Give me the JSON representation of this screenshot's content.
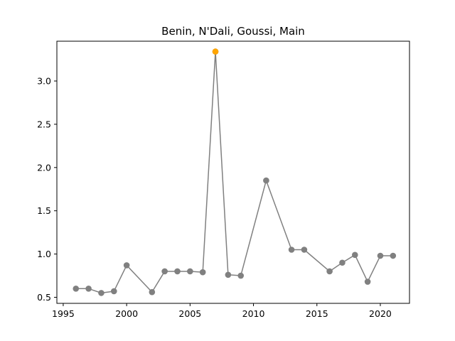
{
  "chart_data": {
    "type": "line",
    "title": "Benin, N'Dali, Goussi, Main",
    "xlabel": "",
    "ylabel": "",
    "xlim": [
      1994.5,
      2022.3
    ],
    "ylim": [
      0.43,
      3.46
    ],
    "xticks": [
      1995,
      2000,
      2005,
      2010,
      2015,
      2020
    ],
    "yticks": [
      0.5,
      1.0,
      1.5,
      2.0,
      2.5,
      3.0
    ],
    "xtick_labels": [
      "1995",
      "2000",
      "2005",
      "2010",
      "2015",
      "2020"
    ],
    "ytick_labels": [
      "0.5",
      "1.0",
      "1.5",
      "2.0",
      "2.5",
      "3.0"
    ],
    "grid": false,
    "series": [
      {
        "line_color": "#808080",
        "marker_color": "#808080",
        "points": [
          {
            "x": 1996,
            "y": 0.6
          },
          {
            "x": 1997,
            "y": 0.6
          },
          {
            "x": 1998,
            "y": 0.55
          },
          {
            "x": 1999,
            "y": 0.57
          },
          {
            "x": 2000,
            "y": 0.87
          },
          {
            "x": 2002,
            "y": 0.56
          },
          {
            "x": 2003,
            "y": 0.8
          },
          {
            "x": 2004,
            "y": 0.8
          },
          {
            "x": 2005,
            "y": 0.8
          },
          {
            "x": 2006,
            "y": 0.79
          },
          {
            "x": 2007,
            "y": 3.34
          },
          {
            "x": 2008,
            "y": 0.76
          },
          {
            "x": 2009,
            "y": 0.75
          },
          {
            "x": 2011,
            "y": 1.85
          },
          {
            "x": 2013,
            "y": 1.05
          },
          {
            "x": 2014,
            "y": 1.05
          },
          {
            "x": 2016,
            "y": 0.8
          },
          {
            "x": 2017,
            "y": 0.9
          },
          {
            "x": 2018,
            "y": 0.99
          },
          {
            "x": 2019,
            "y": 0.68
          },
          {
            "x": 2020,
            "y": 0.98
          },
          {
            "x": 2021,
            "y": 0.98
          }
        ]
      }
    ],
    "highlight": {
      "x": 2007,
      "y": 3.34,
      "color": "#ffa500"
    }
  }
}
